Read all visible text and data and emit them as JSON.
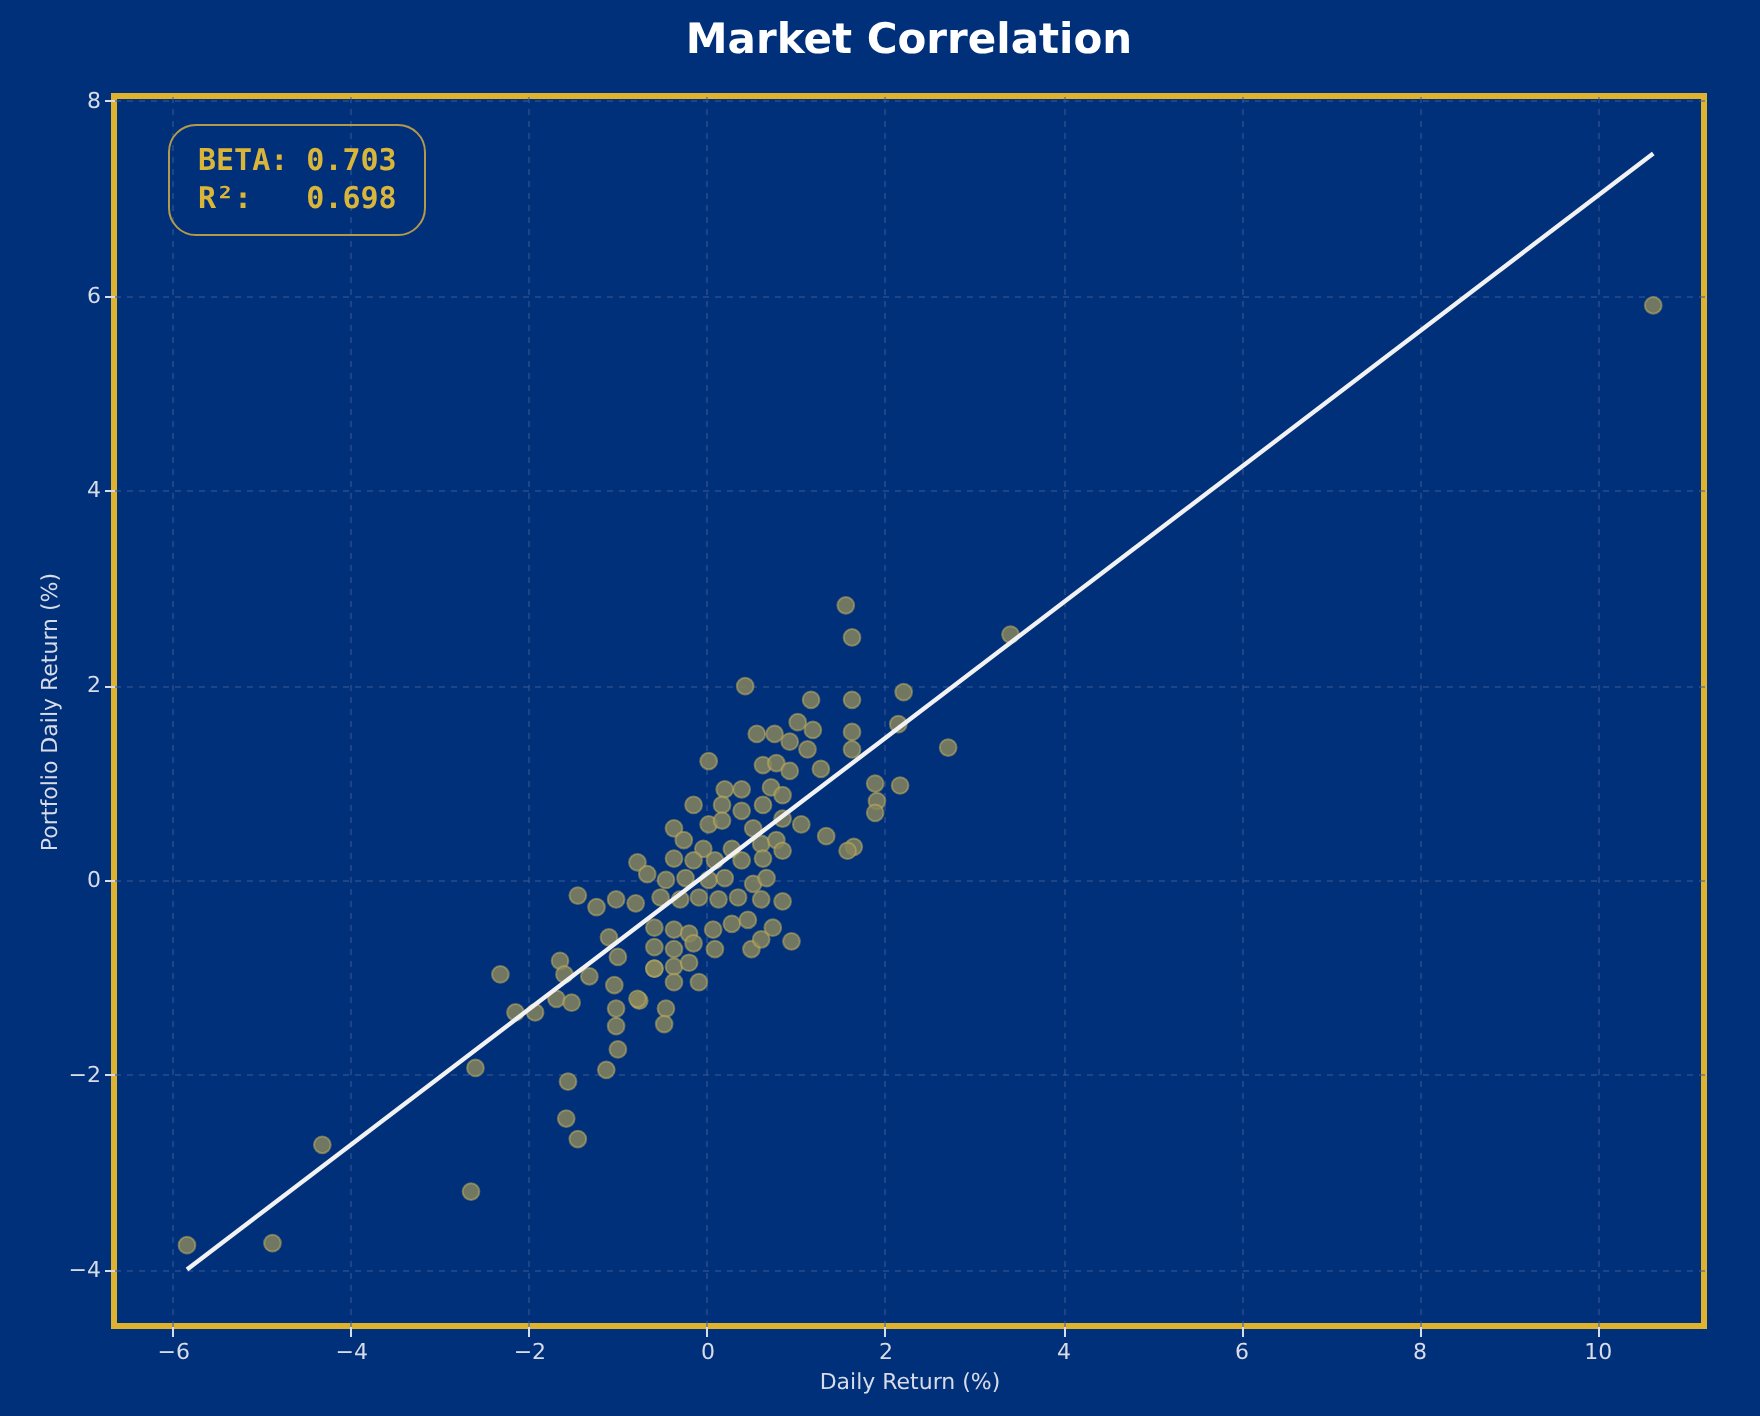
{
  "chart_data": {
    "type": "scatter",
    "title": "Market Correlation",
    "xlabel": "Daily Return (%)",
    "ylabel": "Portfolio Daily Return (%)",
    "annotations": [
      "BETA: 0.703",
      "R²:   0.698"
    ],
    "xlim": [
      -6.66,
      11.2
    ],
    "ylim": [
      -4.58,
      8.05
    ],
    "xticks": [
      -6,
      -4,
      -2,
      0,
      2,
      4,
      6,
      8,
      10
    ],
    "yticks": [
      -4,
      -2,
      0,
      2,
      4,
      6,
      8
    ],
    "grid": true,
    "series": [
      {
        "marker": "circle",
        "color": "#85845c",
        "x": [
          -5.84,
          -4.88,
          -4.32,
          -2.65,
          -2.6,
          -2.32,
          -2.15,
          -1.93,
          -1.65,
          -1.6,
          -1.32,
          -1.69,
          -1.52,
          -1.04,
          -1.02,
          -1.02,
          -1.0,
          -1.13,
          -1.56,
          -1.58,
          -1.45,
          -0.76,
          -0.46,
          -0.48,
          -1.45,
          -1.24,
          -1.02,
          -0.78,
          -0.67,
          -1.1,
          -1.0,
          -0.59,
          -0.37,
          1.56,
          1.63,
          0.43,
          1.17,
          1.63,
          2.21,
          1.02,
          1.19,
          0.56,
          0.76,
          0.93,
          1.13,
          1.63,
          1.63,
          2.15,
          2.71,
          1.28,
          1.89,
          2.17,
          1.91,
          1.89,
          1.65,
          1.58,
          1.34,
          1.06,
          0.02,
          0.63,
          0.78,
          0.93,
          0.39,
          0.2,
          0.72,
          0.85,
          -0.15,
          0.17,
          0.39,
          0.63,
          -0.37,
          0.02,
          0.17,
          0.52,
          0.85,
          -0.26,
          -0.04,
          0.28,
          0.61,
          0.78,
          -0.37,
          -0.15,
          0.09,
          0.39,
          0.63,
          0.85,
          -0.46,
          -0.24,
          0.02,
          0.2,
          0.52,
          0.67,
          -0.8,
          -0.52,
          -0.3,
          -0.09,
          0.13,
          0.35,
          0.61,
          0.85,
          -0.59,
          -0.37,
          -0.2,
          0.07,
          0.28,
          0.46,
          0.74,
          -0.59,
          -0.37,
          -0.15,
          0.09,
          0.5,
          0.61,
          0.95,
          -0.59,
          -0.2,
          -0.78,
          -0.37,
          -0.09,
          3.41,
          10.63
        ],
        "values": [
          -3.75,
          -3.73,
          -2.72,
          -3.2,
          -1.93,
          -0.97,
          -1.36,
          -1.36,
          -0.83,
          -0.97,
          -0.99,
          -1.22,
          -1.26,
          -1.08,
          -1.32,
          -1.5,
          -1.74,
          -1.95,
          -2.07,
          -2.45,
          -2.66,
          -1.24,
          -1.32,
          -1.48,
          -0.16,
          -0.28,
          -0.2,
          0.18,
          0.06,
          -0.59,
          -0.79,
          -0.91,
          -0.89,
          2.82,
          2.49,
          1.99,
          1.85,
          1.85,
          1.93,
          1.62,
          1.54,
          1.5,
          1.5,
          1.42,
          1.34,
          1.52,
          1.34,
          1.6,
          1.36,
          1.14,
          0.99,
          0.97,
          0.81,
          0.69,
          0.34,
          0.3,
          0.45,
          0.57,
          1.22,
          1.18,
          1.2,
          1.12,
          0.93,
          0.93,
          0.95,
          0.87,
          0.77,
          0.77,
          0.71,
          0.77,
          0.53,
          0.57,
          0.61,
          0.53,
          0.63,
          0.41,
          0.32,
          0.32,
          0.37,
          0.41,
          0.22,
          0.2,
          0.2,
          0.2,
          0.22,
          0.3,
          0.0,
          0.02,
          0.0,
          0.02,
          -0.04,
          0.02,
          -0.24,
          -0.18,
          -0.2,
          -0.18,
          -0.2,
          -0.18,
          -0.2,
          -0.22,
          -0.49,
          -0.51,
          -0.55,
          -0.51,
          -0.45,
          -0.41,
          -0.49,
          -0.69,
          -0.71,
          -0.65,
          -0.71,
          -0.71,
          -0.61,
          -0.63,
          -0.91,
          -0.85,
          -1.22,
          -1.05,
          -1.05,
          2.52,
          5.9
        ]
      },
      {
        "type": "line",
        "color": "#f2f2f2",
        "x": [
          -5.84,
          10.63
        ],
        "values": [
          -4.0,
          7.46
        ]
      }
    ]
  }
}
